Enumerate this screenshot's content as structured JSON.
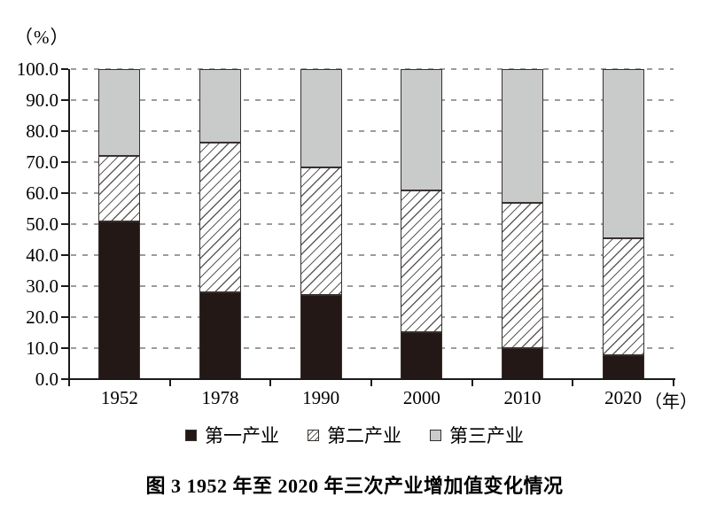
{
  "page": {
    "percent_unit_label": "（%）",
    "axis_unit_label": "（年）",
    "caption": "图 3  1952 年至 2020 年三次产业增加值变化情况"
  },
  "legend": {
    "items": [
      {
        "label": "第一产业",
        "swatch": "solid-black"
      },
      {
        "label": "第二产业",
        "swatch": "diagonal-hatch"
      },
      {
        "label": "第三产业",
        "swatch": "solid-gray"
      }
    ]
  },
  "colors": {
    "primary_fill": "#231815",
    "secondary_hatch_line": "#5f5c5a",
    "tertiary_fill": "#c9caca",
    "segment_border": "#36312f",
    "gridline": "#9c9c9c",
    "axis": "#1a1a1a",
    "text": "#000000",
    "background": "#ffffff"
  },
  "chart_data": {
    "type": "bar",
    "stacked": true,
    "title": "图 3  1952 年至 2020 年三次产业增加值变化情况",
    "categories": [
      "1952",
      "1978",
      "1990",
      "2000",
      "2010",
      "2020"
    ],
    "series": [
      {
        "name": "第一产业",
        "pattern": "solid-black",
        "values": [
          51.0,
          28.1,
          27.1,
          15.1,
          10.1,
          7.7
        ]
      },
      {
        "name": "第二产业",
        "pattern": "diagonal-hatch",
        "values": [
          20.9,
          48.2,
          41.3,
          45.9,
          46.7,
          37.8
        ]
      },
      {
        "name": "第三产业",
        "pattern": "solid-gray",
        "values": [
          28.1,
          23.7,
          31.6,
          39.0,
          43.2,
          54.5
        ]
      }
    ],
    "ylabel": "（%）",
    "xlabel_unit": "（年）",
    "ylim": [
      0,
      100
    ],
    "y_tick_step": 10,
    "y_tick_labels": [
      "0.0",
      "10.0",
      "20.0",
      "30.0",
      "40.0",
      "50.0",
      "60.0",
      "70.0",
      "80.0",
      "90.0",
      "100.0"
    ],
    "grid": "dashed-horizontal",
    "legend_position": "bottom"
  }
}
